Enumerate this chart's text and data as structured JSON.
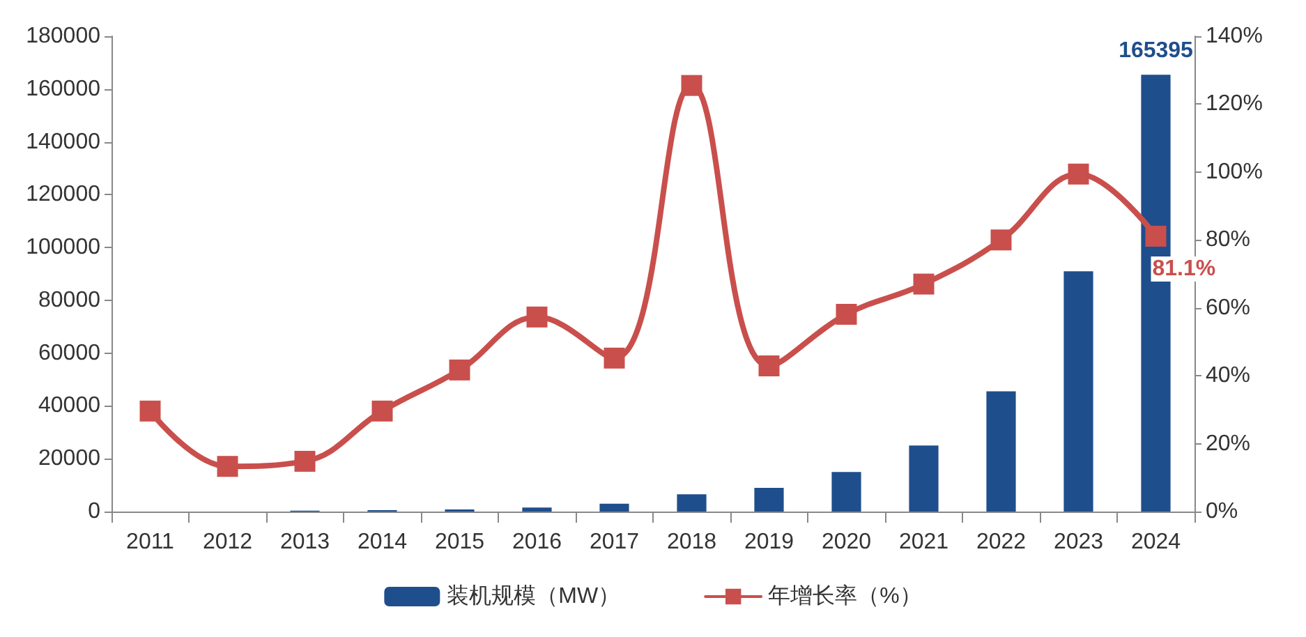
{
  "chart_data": {
    "type": "bar",
    "categories": [
      "2011",
      "2012",
      "2013",
      "2014",
      "2015",
      "2016",
      "2017",
      "2018",
      "2019",
      "2020",
      "2021",
      "2022",
      "2023",
      "2024"
    ],
    "series": [
      {
        "name": "装机规模（MW）",
        "color": "#1f4e8c",
        "values": [
          0,
          0,
          300,
          500,
          800,
          1500,
          3000,
          6500,
          9000,
          15000,
          25000,
          45500,
          91000,
          165395
        ],
        "value_labels": [
          null,
          null,
          null,
          null,
          null,
          null,
          null,
          null,
          null,
          null,
          null,
          null,
          null,
          "165395"
        ]
      },
      {
        "name": "年增长率（%）",
        "type": "line",
        "axis": "y2",
        "color": "#c94f4c",
        "values": [
          29.6,
          13.3,
          14.8,
          29.6,
          41.7,
          57.3,
          45.2,
          125.5,
          42.9,
          58.1,
          67,
          80,
          99.4,
          81.1
        ],
        "value_labels": [
          null,
          null,
          null,
          null,
          null,
          null,
          null,
          null,
          null,
          null,
          null,
          null,
          null,
          "81.1%"
        ]
      }
    ],
    "ylim": [
      0,
      180000
    ],
    "yticks": [
      0,
      20000,
      40000,
      60000,
      80000,
      100000,
      120000,
      140000,
      160000,
      180000
    ],
    "y2lim": [
      0,
      140
    ],
    "y2ticks": [
      {
        "value": 0,
        "label": "0%"
      },
      {
        "value": 20,
        "label": "20%"
      },
      {
        "value": 40,
        "label": "40%"
      },
      {
        "value": 60,
        "label": "60%"
      },
      {
        "value": 80,
        "label": "80%"
      },
      {
        "value": 100,
        "label": "100%"
      },
      {
        "value": 120,
        "label": "120%"
      },
      {
        "value": 140,
        "label": "140%"
      }
    ],
    "marker": "square",
    "legend": "bottom",
    "grid": false
  }
}
